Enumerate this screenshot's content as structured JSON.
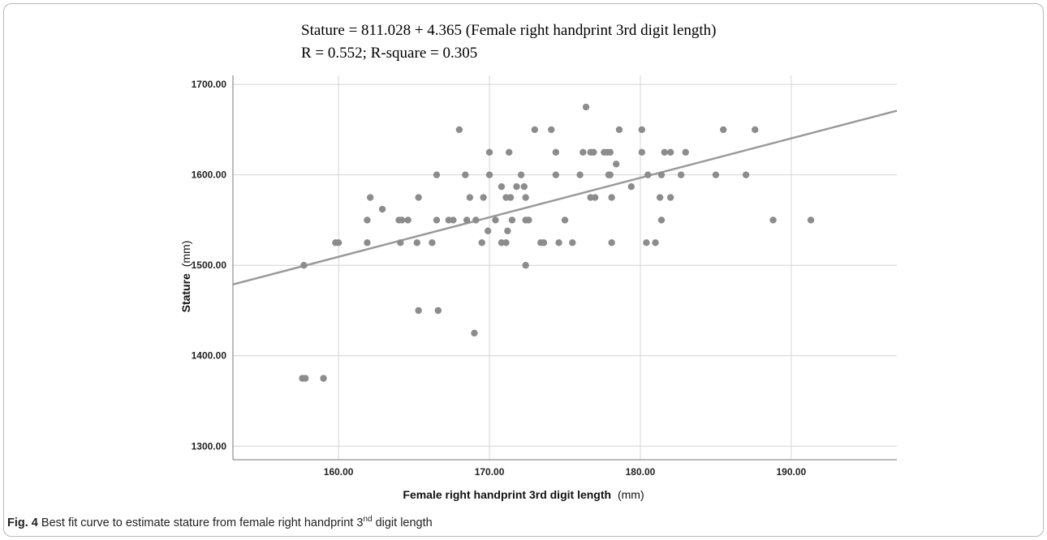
{
  "chart_data": {
    "type": "scatter",
    "annotation_lines": [
      "Stature = 811.028 + 4.365 (Female right handprint 3rd digit length)",
      "R = 0.552; R-square = 0.305"
    ],
    "xlabel": "Female right handprint 3rd digit length",
    "xlabel_unit": "(mm)",
    "ylabel": "Stature",
    "ylabel_unit": "(mm)",
    "xlim": [
      153,
      197
    ],
    "ylim": [
      1285,
      1710
    ],
    "x_ticks": [
      160,
      170,
      180,
      190
    ],
    "x_tick_labels": [
      "160.00",
      "170.00",
      "180.00",
      "190.00"
    ],
    "y_ticks": [
      1300,
      1400,
      1500,
      1600,
      1700
    ],
    "y_tick_labels": [
      "1300.00",
      "1400.00",
      "1500.00",
      "1600.00",
      "1700.00"
    ],
    "grid": true,
    "point_color": "#8c8c8c",
    "line_color": "#999999",
    "fit_line": {
      "intercept": 811.028,
      "slope": 4.365
    },
    "points": [
      [
        157.6,
        1375
      ],
      [
        157.8,
        1375
      ],
      [
        159.0,
        1375
      ],
      [
        157.7,
        1500
      ],
      [
        159.8,
        1525
      ],
      [
        160.0,
        1525
      ],
      [
        161.9,
        1550
      ],
      [
        161.9,
        1525
      ],
      [
        162.1,
        1575
      ],
      [
        162.9,
        1562
      ],
      [
        164.1,
        1525
      ],
      [
        164.2,
        1550
      ],
      [
        164.0,
        1550
      ],
      [
        164.6,
        1550
      ],
      [
        165.2,
        1525
      ],
      [
        165.3,
        1575
      ],
      [
        165.3,
        1450
      ],
      [
        166.2,
        1525
      ],
      [
        166.5,
        1600
      ],
      [
        166.5,
        1550
      ],
      [
        166.6,
        1450
      ],
      [
        167.3,
        1550
      ],
      [
        167.6,
        1550
      ],
      [
        168.0,
        1650
      ],
      [
        168.4,
        1600
      ],
      [
        168.5,
        1550
      ],
      [
        168.7,
        1575
      ],
      [
        169.0,
        1425
      ],
      [
        169.1,
        1550
      ],
      [
        169.5,
        1525
      ],
      [
        169.6,
        1575
      ],
      [
        169.9,
        1538
      ],
      [
        170.0,
        1625
      ],
      [
        170.0,
        1600
      ],
      [
        170.4,
        1550
      ],
      [
        170.8,
        1587
      ],
      [
        170.8,
        1525
      ],
      [
        171.1,
        1525
      ],
      [
        171.1,
        1575
      ],
      [
        171.3,
        1625
      ],
      [
        171.2,
        1538
      ],
      [
        171.4,
        1575
      ],
      [
        171.5,
        1550
      ],
      [
        171.8,
        1587
      ],
      [
        172.1,
        1600
      ],
      [
        172.3,
        1587
      ],
      [
        172.4,
        1575
      ],
      [
        172.4,
        1550
      ],
      [
        172.6,
        1550
      ],
      [
        172.4,
        1500
      ],
      [
        173.0,
        1650
      ],
      [
        173.4,
        1525
      ],
      [
        173.6,
        1525
      ],
      [
        174.1,
        1650
      ],
      [
        174.4,
        1625
      ],
      [
        174.4,
        1600
      ],
      [
        174.6,
        1525
      ],
      [
        175.0,
        1550
      ],
      [
        175.5,
        1525
      ],
      [
        176.0,
        1600
      ],
      [
        176.2,
        1625
      ],
      [
        176.4,
        1675
      ],
      [
        176.7,
        1625
      ],
      [
        176.7,
        1575
      ],
      [
        176.9,
        1625
      ],
      [
        177.0,
        1575
      ],
      [
        177.6,
        1625
      ],
      [
        177.8,
        1625
      ],
      [
        177.9,
        1600
      ],
      [
        178.0,
        1625
      ],
      [
        178.0,
        1600
      ],
      [
        178.1,
        1575
      ],
      [
        178.1,
        1525
      ],
      [
        178.4,
        1612
      ],
      [
        178.6,
        1650
      ],
      [
        179.4,
        1587
      ],
      [
        180.1,
        1650
      ],
      [
        180.1,
        1625
      ],
      [
        180.4,
        1525
      ],
      [
        180.5,
        1600
      ],
      [
        181.0,
        1525
      ],
      [
        181.3,
        1575
      ],
      [
        181.4,
        1600
      ],
      [
        181.4,
        1550
      ],
      [
        181.6,
        1625
      ],
      [
        182.0,
        1625
      ],
      [
        182.0,
        1575
      ],
      [
        182.7,
        1600
      ],
      [
        183.0,
        1625
      ],
      [
        185.0,
        1600
      ],
      [
        185.5,
        1650
      ],
      [
        187.0,
        1600
      ],
      [
        187.6,
        1650
      ],
      [
        188.8,
        1550
      ],
      [
        191.3,
        1550
      ]
    ]
  },
  "caption": {
    "label": "Fig. 4",
    "text_before": " Best fit curve to estimate stature from female right handprint 3",
    "superscript": "nd",
    "text_after": " digit length"
  }
}
